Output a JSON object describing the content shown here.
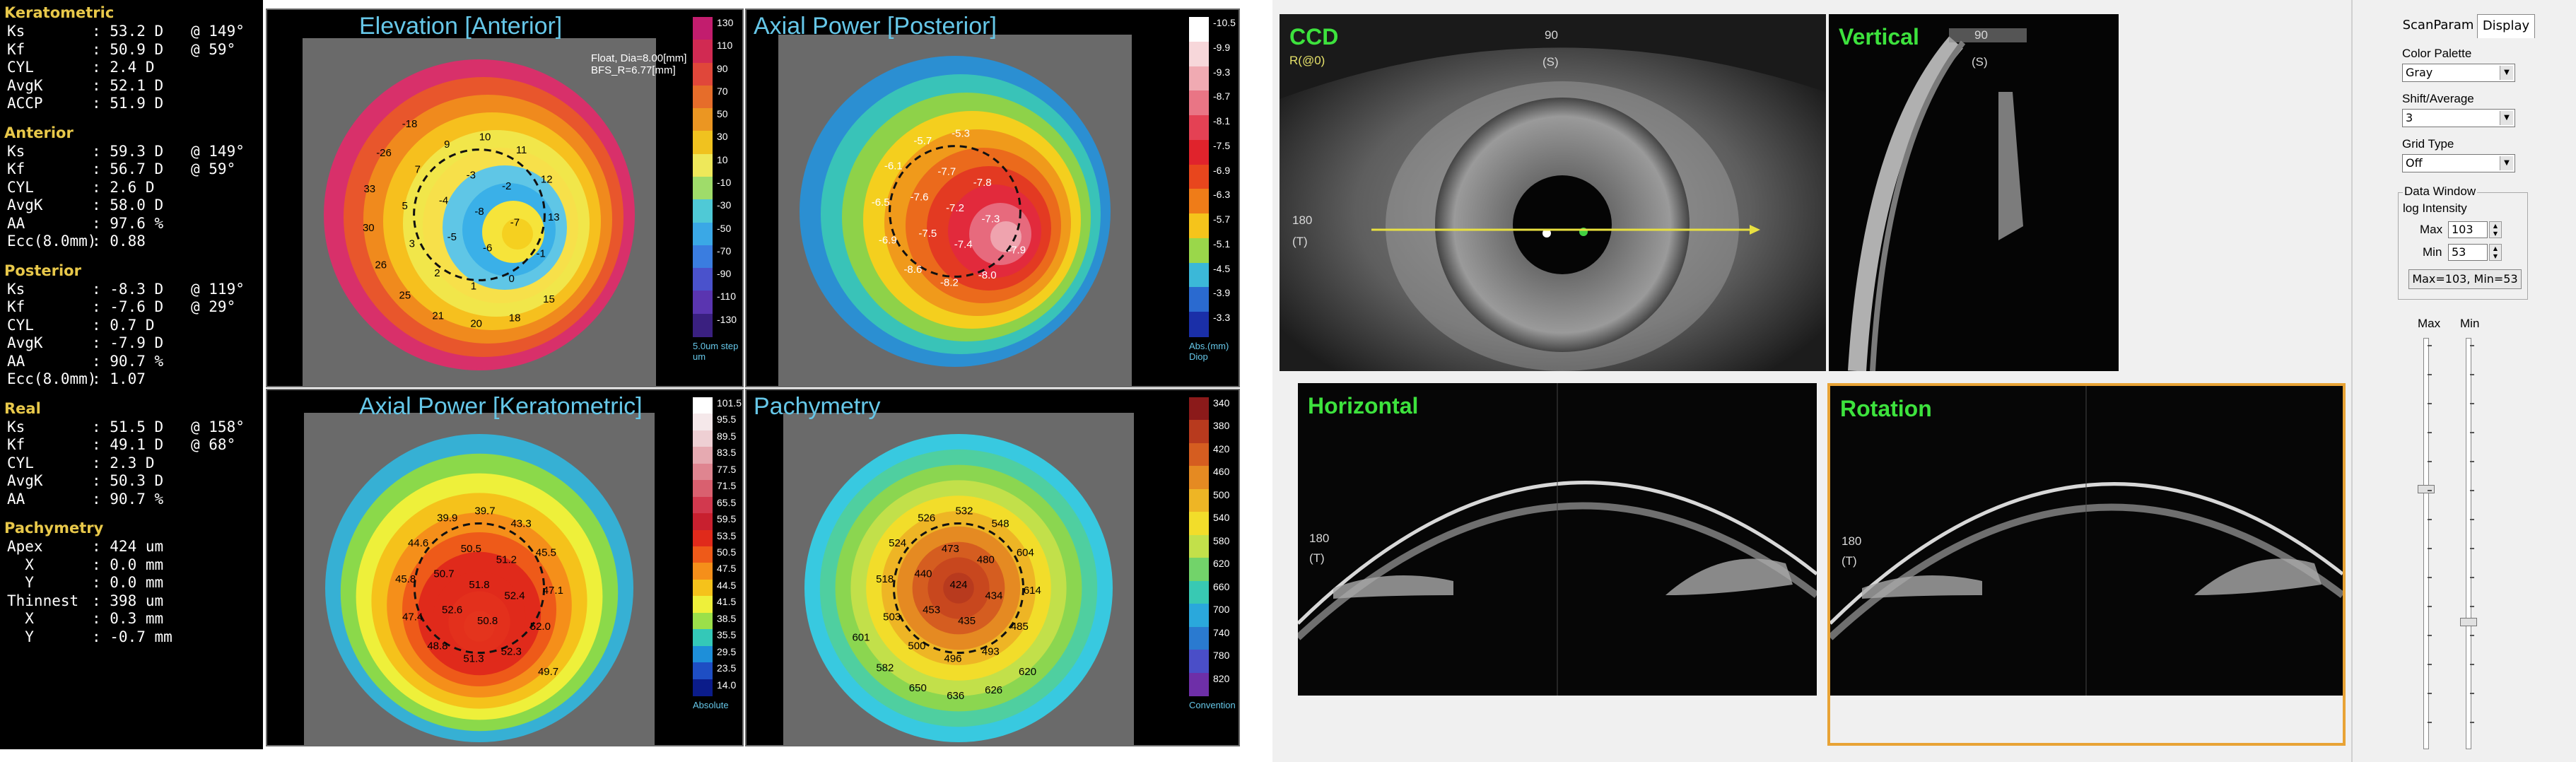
{
  "left_data": {
    "sections": [
      {
        "title": "Keratometric",
        "rows": [
          {
            "label": "Ks",
            "value": "53.2 D",
            "axis": "@ 149°"
          },
          {
            "label": "Kf",
            "value": "50.9 D",
            "axis": "@ 59°"
          },
          {
            "label": "CYL",
            "value": "2.4 D",
            "axis": ""
          },
          {
            "label": "AvgK",
            "value": "52.1 D",
            "axis": ""
          },
          {
            "label": "ACCP",
            "value": "51.9 D",
            "axis": ""
          }
        ]
      },
      {
        "title": "Anterior",
        "rows": [
          {
            "label": "Ks",
            "value": "59.3 D",
            "axis": "@ 149°"
          },
          {
            "label": "Kf",
            "value": "56.7 D",
            "axis": "@ 59°"
          },
          {
            "label": "CYL",
            "value": "2.6 D",
            "axis": ""
          },
          {
            "label": "AvgK",
            "value": "58.0 D",
            "axis": ""
          },
          {
            "label": "AA",
            "value": "97.6 %",
            "axis": ""
          },
          {
            "label": "Ecc(8.0mm)",
            "value": "0.88",
            "axis": ""
          }
        ]
      },
      {
        "title": "Posterior",
        "rows": [
          {
            "label": "Ks",
            "value": "-8.3 D",
            "axis": "@ 119°"
          },
          {
            "label": "Kf",
            "value": "-7.6 D",
            "axis": "@ 29°"
          },
          {
            "label": "CYL",
            "value": "0.7 D",
            "axis": ""
          },
          {
            "label": "AvgK",
            "value": "-7.9 D",
            "axis": ""
          },
          {
            "label": "AA",
            "value": "90.7 %",
            "axis": ""
          },
          {
            "label": "Ecc(8.0mm)",
            "value": "1.07",
            "axis": ""
          }
        ]
      },
      {
        "title": "Real",
        "rows": [
          {
            "label": "Ks",
            "value": "51.5 D",
            "axis": "@ 158°"
          },
          {
            "label": "Kf",
            "value": "49.1 D",
            "axis": "@ 68°"
          },
          {
            "label": "CYL",
            "value": "2.3 D",
            "axis": ""
          },
          {
            "label": "AvgK",
            "value": "50.3 D",
            "axis": ""
          },
          {
            "label": "AA",
            "value": "90.7 %",
            "axis": ""
          }
        ]
      },
      {
        "title": "Pachymetry",
        "rows": [
          {
            "label": "Apex",
            "value": "424 um",
            "axis": ""
          },
          {
            "label": "  X",
            "value": "0.0 mm",
            "axis": ""
          },
          {
            "label": "  Y",
            "value": "0.0 mm",
            "axis": ""
          },
          {
            "label": "Thinnest",
            "value": "398 um",
            "axis": ""
          },
          {
            "label": "  X",
            "value": "0.3 mm",
            "axis": ""
          },
          {
            "label": "  Y",
            "value": "-0.7 mm",
            "axis": ""
          }
        ]
      }
    ]
  },
  "maps": {
    "elevation": {
      "title": "Elevation [Anterior]",
      "info": "Float, Dia=8.00[mm]\nBFS_R=6.77[mm]",
      "scale_labels": [
        "130",
        "110",
        "90",
        "70",
        "50",
        "30",
        "10",
        "-10",
        "-30",
        "-50",
        "-70",
        "-90",
        "-110",
        "-130"
      ],
      "scale_footer": "5.0um step\num",
      "scale_colors": [
        "#c21d6e",
        "#d12a52",
        "#e0473a",
        "#e66d2a",
        "#eb9622",
        "#f0c21f",
        "#eee85a",
        "#9fdc6a",
        "#4fc9d6",
        "#3aa8e6",
        "#3a7de0",
        "#4a52cc",
        "#5a35b0",
        "#3a2080"
      ],
      "values": [
        "-8",
        "-7",
        "-6",
        "-5",
        "-4",
        "-3",
        "-2",
        "-1",
        "0",
        "1",
        "2",
        "3",
        "5",
        "7",
        "9",
        "10",
        "11",
        "12",
        "13",
        "15",
        "18",
        "20",
        "21",
        "25",
        "26",
        "30",
        "33",
        "-26",
        "-18"
      ]
    },
    "axial_posterior": {
      "title": "Axial Power [Posterior]",
      "scale_labels": [
        "-10.5",
        "-9.9",
        "-9.3",
        "-8.7",
        "-8.1",
        "-7.5",
        "-6.9",
        "-6.3",
        "-5.7",
        "-5.1",
        "-4.5",
        "-3.9",
        "-3.3"
      ],
      "scale_footer": "Abs.(mm)\nDiop",
      "scale_colors": [
        "#ffffff",
        "#f7d7da",
        "#f0aab2",
        "#e97585",
        "#e44154",
        "#e0232c",
        "#e8461d",
        "#ef7c18",
        "#f5c41b",
        "#9ad74a",
        "#3bb8d8",
        "#2a6ad0",
        "#1a2fa8"
      ],
      "values": [
        "-7.2",
        "-7.3",
        "-7.4",
        "-7.5",
        "-7.6",
        "-7.7",
        "-7.8",
        "-7.9",
        "-8.0",
        "-8.2",
        "-8.6",
        "-6.9",
        "-6.5",
        "-6.1",
        "-5.7",
        "-5.3"
      ]
    },
    "axial_keratometric": {
      "title": "Axial Power [Keratometric]",
      "scale_labels": [
        "101.5",
        "95.5",
        "89.5",
        "83.5",
        "77.5",
        "71.5",
        "65.5",
        "59.5",
        "53.5",
        "50.5",
        "47.5",
        "44.5",
        "41.5",
        "38.5",
        "35.5",
        "29.5",
        "23.5",
        "14.0"
      ],
      "scale_footer": "Absolute",
      "scale_colors": [
        "#ffffff",
        "#f5e8ea",
        "#eecfd3",
        "#e6aab1",
        "#df8590",
        "#d9606f",
        "#d2394e",
        "#c8202f",
        "#e02a1b",
        "#ee5a19",
        "#f58f1a",
        "#f5c21b",
        "#eef03a",
        "#9be04a",
        "#34c8b8",
        "#1e8fd9",
        "#1e4ec4",
        "#0b1c8a"
      ],
      "values": [
        "51.8",
        "52.4",
        "50.8",
        "52.6",
        "50.7",
        "50.5",
        "51.2",
        "52.0",
        "52.3",
        "51.3",
        "48.8",
        "47.4",
        "45.8",
        "44.6",
        "39.9",
        "39.7",
        "43.3",
        "45.5",
        "47.1",
        "49.7"
      ]
    },
    "pachymetry": {
      "title": "Pachymetry",
      "scale_labels": [
        "340",
        "380",
        "420",
        "460",
        "500",
        "540",
        "580",
        "620",
        "660",
        "700",
        "740",
        "780",
        "820"
      ],
      "scale_footer": "Convention",
      "scale_colors": [
        "#8b1a1a",
        "#b83a1e",
        "#d55d20",
        "#e58a22",
        "#eeb525",
        "#f2dd2a",
        "#c2e04a",
        "#72d36a",
        "#38c9b3",
        "#2aa8dc",
        "#2a7ad0",
        "#4a4ec8",
        "#6e2fa8"
      ],
      "values": [
        "424",
        "434",
        "435",
        "453",
        "440",
        "473",
        "480",
        "485",
        "493",
        "496",
        "500",
        "503",
        "518",
        "524",
        "526",
        "532",
        "548",
        "604",
        "614",
        "620",
        "626",
        "636",
        "650",
        "582",
        "601"
      ]
    }
  },
  "oct": {
    "tabs": [
      "ScanParam",
      "Display"
    ],
    "active_tab": "Display",
    "ccd": {
      "label": "CCD",
      "r_label": "R(@0)",
      "top_angle": "90",
      "top_sub": "(S)",
      "left_angle": "180",
      "left_sub": "(T)"
    },
    "vertical": {
      "label": "Vertical",
      "top_angle": "90",
      "top_sub": "(S)"
    },
    "horizontal": {
      "label": "Horizontal",
      "left_angle": "180",
      "left_sub": "(T)"
    },
    "rotation": {
      "label": "Rotation",
      "left_angle": "180",
      "left_sub": "(T)"
    },
    "controls": {
      "color_palette_label": "Color Palette",
      "color_palette_value": "Gray",
      "shift_average_label": "Shift/Average",
      "shift_average_value": "3",
      "grid_type_label": "Grid Type",
      "grid_type_value": "Off",
      "data_window_label": "Data Window",
      "log_intensity_label": "log Intensity",
      "max_label": "Max",
      "max_value": "103",
      "min_label": "Min",
      "min_value": "53",
      "range_button": "Max=103, Min=53",
      "slider_max_label": "Max",
      "slider_min_label": "Min"
    }
  }
}
